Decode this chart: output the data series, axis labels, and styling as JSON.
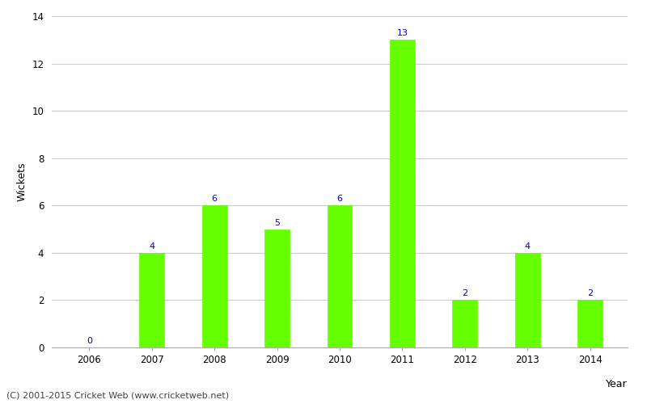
{
  "years": [
    "2006",
    "2007",
    "2008",
    "2009",
    "2010",
    "2011",
    "2012",
    "2013",
    "2014"
  ],
  "values": [
    0,
    4,
    6,
    5,
    6,
    13,
    2,
    4,
    2
  ],
  "bar_color": "#66ff00",
  "bar_edgecolor": "#66ff00",
  "label_color": "#0000cc",
  "ylabel": "Wickets",
  "xlabel": "Year",
  "ylim": [
    0,
    14
  ],
  "yticks": [
    0,
    2,
    4,
    6,
    8,
    10,
    12,
    14
  ],
  "grid_color": "#cccccc",
  "background_color": "#ffffff",
  "footer": "(C) 2001-2015 Cricket Web (www.cricketweb.net)",
  "label_fontsize": 8,
  "axis_label_fontsize": 9,
  "tick_fontsize": 8.5,
  "footer_fontsize": 8,
  "bar_width": 0.4
}
